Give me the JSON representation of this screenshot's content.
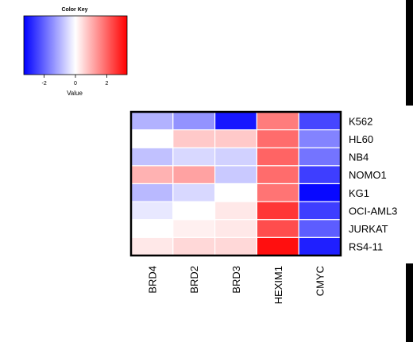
{
  "chart_data": {
    "type": "heatmap",
    "columns": [
      "BRD4",
      "BRD2",
      "BRD3",
      "HEXIM1",
      "CMYC"
    ],
    "rows": [
      "K562",
      "HL60",
      "NB4",
      "NOMO1",
      "KG1",
      "OCI-AML3",
      "JURKAT",
      "RS4-11"
    ],
    "values": [
      [
        -1.0,
        -1.4,
        -3.0,
        1.7,
        -2.4
      ],
      [
        0.0,
        0.7,
        0.7,
        1.9,
        -1.6
      ],
      [
        -0.8,
        -0.5,
        -0.6,
        2.0,
        -1.8
      ],
      [
        1.0,
        1.2,
        -0.7,
        1.9,
        -2.5
      ],
      [
        -0.9,
        -0.5,
        0.0,
        1.8,
        -3.2
      ],
      [
        -0.3,
        0.0,
        0.3,
        2.6,
        -2.5
      ],
      [
        0.0,
        0.2,
        0.3,
        2.3,
        -2.1
      ],
      [
        0.3,
        0.5,
        0.5,
        3.1,
        -2.9
      ]
    ],
    "color_key": {
      "title": "Color Key",
      "xlabel": "Value",
      "ticks": [
        -2,
        0,
        2
      ],
      "range": [
        -3.3,
        3.3
      ],
      "low_color": "#0000ff",
      "mid_color": "#ffffff",
      "high_color": "#ff0000"
    }
  }
}
